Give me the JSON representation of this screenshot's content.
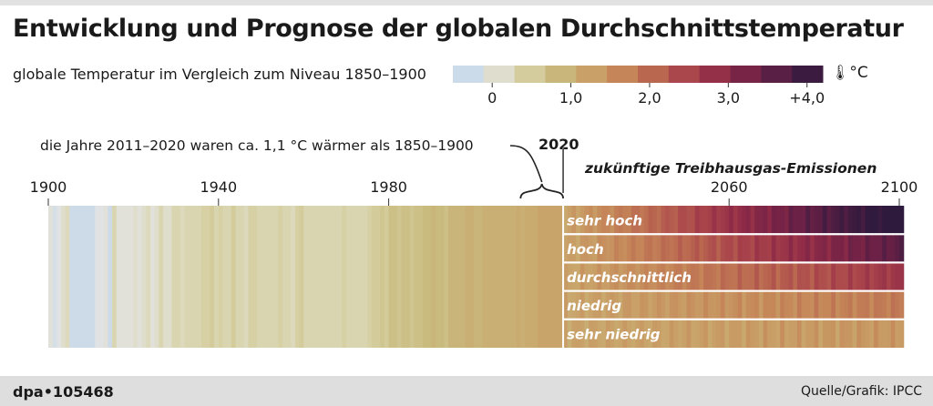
{
  "title": "Entwicklung und Prognose der globalen Durchschnittstemperatur",
  "legend": {
    "label": "globale Temperatur im Vergleich zum Niveau 1850–1900",
    "unit": "°C",
    "ticks": [
      {
        "value": 0,
        "label": "0"
      },
      {
        "value": 1,
        "label": "1,0"
      },
      {
        "value": 2,
        "label": "2,0"
      },
      {
        "value": 3,
        "label": "3,0"
      },
      {
        "value": 4,
        "label": "+4,0"
      }
    ],
    "colors": [
      "#b9d4ee",
      "#e3e3e3",
      "#d8d3a8",
      "#c9bb7f",
      "#c9a46a",
      "#c58658",
      "#b96650",
      "#a8424b",
      "#8f2b47",
      "#6f2146",
      "#4b1d42",
      "#2e1a3d"
    ],
    "range": [
      -0.5,
      4.2
    ]
  },
  "annotation": "die Jahre 2011–2020 waren ca. 1,1 °C wärmer als 1850–1900",
  "year_marker": "2020",
  "future_label": "zukünftige Treibhausgas-Emissionen",
  "footer": {
    "left": "dpa•105468",
    "right": "Quelle/Grafik: IPCC"
  },
  "chart_data": {
    "type": "heatmap",
    "title": "Entwicklung und Prognose der globalen Durchschnittstemperatur",
    "x_axis": {
      "range": [
        1900,
        2100
      ],
      "ticks": [
        1900,
        1940,
        1980,
        2060,
        2100
      ]
    },
    "value_unit": "°C",
    "observed": {
      "years": [
        1900,
        2020
      ],
      "anomalies": [
        0.0,
        -0.2,
        -0.1,
        0.1,
        0.2,
        -0.3,
        -0.3,
        -0.3,
        -0.3,
        -0.3,
        -0.3,
        -0.1,
        -0.1,
        0.0,
        -0.3,
        0.3,
        0.0,
        0.0,
        0.0,
        0.0,
        0.1,
        0.0,
        0.1,
        0.2,
        0.0,
        0.1,
        0.3,
        0.1,
        0.1,
        0.3,
        0.3,
        0.2,
        0.3,
        0.3,
        0.3,
        0.3,
        0.4,
        0.4,
        0.5,
        0.3,
        0.4,
        0.3,
        0.3,
        0.5,
        0.3,
        0.3,
        0.2,
        0.4,
        0.4,
        0.3,
        0.3,
        0.3,
        0.3,
        0.3,
        0.4,
        0.3,
        0.3,
        0.2,
        0.4,
        0.5,
        0.3,
        0.3,
        0.3,
        0.3,
        0.3,
        0.3,
        0.3,
        0.3,
        0.3,
        0.4,
        0.3,
        0.3,
        0.3,
        0.3,
        0.3,
        0.4,
        0.5,
        0.5,
        0.6,
        0.5,
        0.7,
        0.7,
        0.6,
        0.7,
        0.7,
        0.6,
        0.7,
        0.7,
        0.8,
        0.8,
        0.9,
        0.8,
        0.8,
        0.7,
        0.9,
        0.9,
        0.9,
        0.9,
        1.0,
        1.0,
        0.9,
        0.9,
        1.0,
        1.0,
        1.0,
        1.0,
        1.0,
        1.0,
        1.0,
        1.0,
        1.1,
        1.0,
        1.1,
        1.1,
        1.1,
        1.2,
        1.2,
        1.2,
        1.2,
        1.2,
        1.2
      ]
    },
    "scenarios": [
      {
        "name": "sehr hoch",
        "years": [
          2021,
          2100
        ],
        "start": 1.2,
        "end": 4.4
      },
      {
        "name": "hoch",
        "years": [
          2021,
          2100
        ],
        "start": 1.2,
        "end": 3.6
      },
      {
        "name": "durchschnittlich",
        "years": [
          2021,
          2100
        ],
        "start": 1.2,
        "end": 2.7
      },
      {
        "name": "niedrig",
        "years": [
          2021,
          2100
        ],
        "start": 1.2,
        "end": 1.8
      },
      {
        "name": "sehr niedrig",
        "years": [
          2021,
          2100
        ],
        "start": 1.2,
        "end": 1.4
      }
    ]
  }
}
